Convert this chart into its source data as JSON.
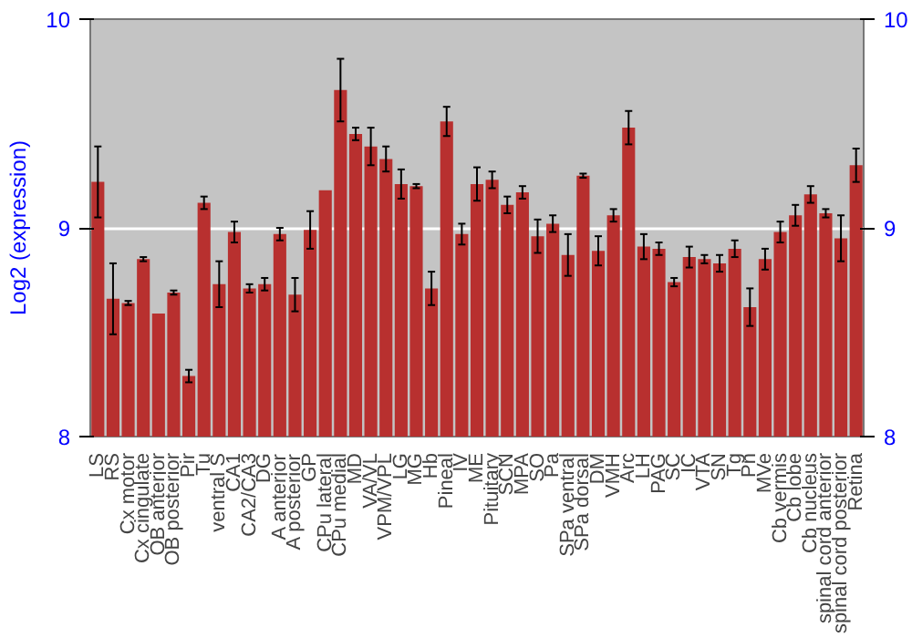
{
  "chart_data": {
    "type": "bar",
    "ylabel": "Log2 (expression)",
    "categories": [
      "LS",
      "RS",
      "Cx motor",
      "Cx cingulate",
      "OB anterior",
      "OB posterior",
      "Pir",
      "Tu",
      "ventral S",
      "CA1",
      "CA2/CA3",
      "DG",
      "A anterior",
      "A posterior",
      "GP",
      "CPu lateral",
      "CPu medial",
      "MD",
      "VA/VL",
      "VPM/VPL",
      "LG",
      "MG",
      "Hb",
      "Pineal",
      "IV",
      "ME",
      "Pituitary",
      "SCN",
      "MPA",
      "SO",
      "Pa",
      "SPa ventral",
      "SPa dorsal",
      "DM",
      "VMH",
      "Arc",
      "LH",
      "PAG",
      "SC",
      "IC",
      "VTA",
      "SN",
      "Tg",
      "Pn",
      "MVe",
      "Cb vermis",
      "Cb lobe",
      "Cb nucleus",
      "spinal cord anterior",
      "spinal cord posterior",
      "Retina"
    ],
    "values": [
      9.22,
      8.66,
      8.64,
      8.85,
      8.59,
      8.69,
      8.29,
      9.12,
      8.73,
      8.98,
      8.71,
      8.73,
      8.97,
      8.68,
      8.99,
      9.18,
      9.66,
      9.45,
      9.39,
      9.33,
      9.21,
      9.2,
      8.71,
      9.51,
      8.97,
      9.21,
      9.23,
      9.11,
      9.17,
      8.96,
      9.02,
      8.87,
      9.25,
      8.89,
      9.06,
      9.48,
      8.91,
      8.9,
      8.74,
      8.86,
      8.85,
      8.83,
      8.9,
      8.62,
      8.85,
      8.98,
      9.06,
      9.16,
      9.07,
      8.95,
      9.3
    ],
    "errors": [
      0.17,
      0.17,
      0.01,
      0.01,
      null,
      0.01,
      0.03,
      0.03,
      0.11,
      0.05,
      0.02,
      0.03,
      0.03,
      0.08,
      0.09,
      null,
      0.15,
      0.03,
      0.09,
      0.06,
      0.07,
      0.01,
      0.08,
      0.07,
      0.05,
      0.08,
      0.04,
      0.04,
      0.03,
      0.08,
      0.04,
      0.1,
      0.01,
      0.07,
      0.03,
      0.08,
      0.06,
      0.03,
      0.02,
      0.05,
      0.02,
      0.04,
      0.04,
      0.09,
      0.05,
      0.05,
      0.05,
      0.04,
      0.02,
      0.11,
      0.08
    ],
    "color": "#b8302f",
    "ylim": [
      8,
      10
    ],
    "yticks": [
      8,
      9,
      10
    ],
    "y2lim": [
      8,
      10
    ],
    "y2ticks": [
      8,
      9,
      10
    ],
    "grid": "y"
  }
}
